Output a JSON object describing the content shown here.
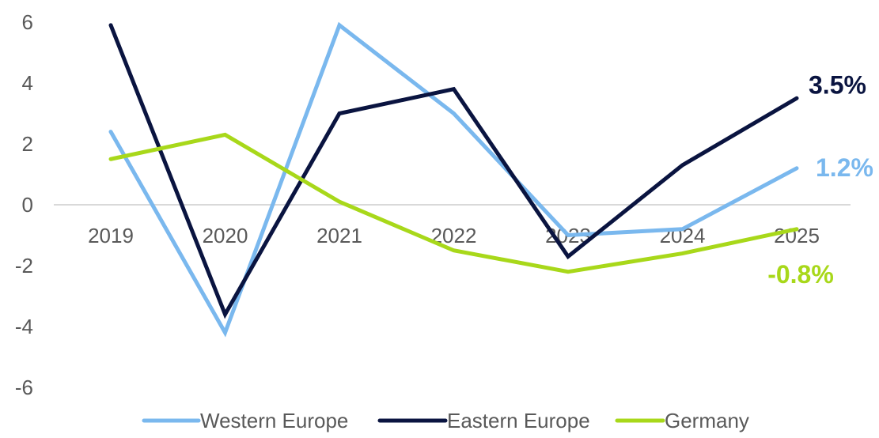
{
  "chart_data": {
    "type": "line",
    "categories": [
      "2019",
      "2020",
      "2021",
      "2022",
      "2023",
      "2024",
      "2025"
    ],
    "y_ticks": [
      "6",
      "4",
      "2",
      "0",
      "-2",
      "-4",
      "-6"
    ],
    "ylim": [
      -6,
      6
    ],
    "grid": false,
    "legend_position": "bottom",
    "series": [
      {
        "name": "Western Europe",
        "color": "#7AB8EE",
        "values": [
          2.4,
          -4.2,
          5.9,
          3.0,
          -1.0,
          -0.8,
          1.2
        ],
        "end_label": "1.2%"
      },
      {
        "name": "Eastern Europe",
        "color": "#0A1440",
        "values": [
          5.9,
          -3.6,
          3.0,
          3.8,
          -1.7,
          1.3,
          3.5
        ],
        "end_label": "3.5%"
      },
      {
        "name": "Germany",
        "color": "#A8D81A",
        "values": [
          1.5,
          2.3,
          0.1,
          -1.5,
          -2.2,
          -1.6,
          -0.8
        ],
        "end_label": "-0.8%"
      }
    ]
  }
}
